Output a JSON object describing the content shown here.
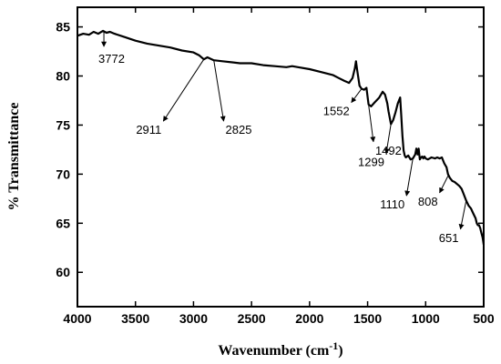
{
  "chart_data": {
    "type": "line",
    "title": "",
    "xlabel_main": "Wavenumber (cm",
    "xlabel_sup": "-1",
    "xlabel_close": ")",
    "ylabel": "% Transmittance",
    "xlim": [
      4000,
      500
    ],
    "ylim": [
      56.5,
      87
    ],
    "x_ticks": [
      4000,
      3500,
      3000,
      2500,
      2000,
      1500,
      1000,
      500
    ],
    "y_ticks": [
      60,
      65,
      70,
      75,
      80,
      85
    ],
    "grid": false,
    "line_color": "#000000",
    "series": [
      {
        "x": [
          4000,
          3950,
          3900,
          3860,
          3820,
          3780,
          3750,
          3720,
          3680,
          3600,
          3500,
          3400,
          3300,
          3200,
          3100,
          3000,
          2950,
          2911,
          2880,
          2825,
          2750,
          2600,
          2500,
          2400,
          2300,
          2200,
          2150,
          2100,
          2000,
          1900,
          1800,
          1750,
          1700,
          1660,
          1630,
          1610,
          1600,
          1590,
          1570,
          1552,
          1530,
          1510,
          1492,
          1470,
          1440,
          1400,
          1370,
          1350,
          1330,
          1320,
          1299,
          1280,
          1260,
          1240,
          1220,
          1210,
          1200,
          1190,
          1180,
          1170,
          1150,
          1130,
          1110,
          1090,
          1080,
          1070,
          1060,
          1050,
          1040,
          1030,
          1020,
          1010,
          1000,
          980,
          950,
          920,
          900,
          880,
          860,
          840,
          820,
          808,
          790,
          770,
          750,
          730,
          710,
          690,
          670,
          651,
          630,
          610,
          590,
          570,
          560,
          550,
          540,
          530,
          520,
          510,
          505,
          500
        ],
        "y": [
          84.1,
          84.3,
          84.2,
          84.5,
          84.3,
          84.6,
          84.4,
          84.5,
          84.3,
          84.0,
          83.6,
          83.3,
          83.1,
          82.9,
          82.6,
          82.4,
          82.1,
          81.7,
          81.9,
          81.6,
          81.5,
          81.3,
          81.3,
          81.1,
          81.0,
          80.9,
          81.0,
          80.9,
          80.7,
          80.4,
          80.1,
          79.8,
          79.5,
          79.3,
          79.8,
          80.8,
          81.5,
          80.6,
          79.0,
          78.7,
          78.6,
          78.8,
          77.1,
          76.9,
          77.3,
          77.8,
          78.4,
          78.1,
          77.2,
          76.4,
          75.1,
          75.5,
          76.3,
          77.2,
          77.8,
          76.0,
          73.9,
          72.4,
          71.9,
          71.7,
          71.9,
          71.5,
          71.6,
          72.0,
          72.6,
          72.0,
          72.6,
          71.5,
          71.7,
          71.8,
          71.6,
          71.8,
          71.6,
          71.5,
          71.7,
          71.6,
          71.7,
          71.6,
          71.7,
          71.1,
          70.7,
          70.0,
          69.6,
          69.3,
          69.2,
          69.0,
          68.8,
          68.5,
          67.9,
          67.3,
          66.8,
          66.5,
          66.0,
          65.5,
          65.0,
          64.8,
          64.8,
          64.5,
          64.0,
          63.6,
          63.2,
          62.8
        ]
      }
    ],
    "annotations": [
      {
        "text": "3772",
        "x": 3772,
        "y": 84.5,
        "tip_x": 3772,
        "tip_y": 83.0
      },
      {
        "text": "2911",
        "x": 2911,
        "y": 81.7,
        "tip_x": 3260,
        "tip_y": 75.4
      },
      {
        "text": "2825",
        "x": 2825,
        "y": 81.6,
        "tip_x": 2740,
        "tip_y": 75.4
      },
      {
        "text": "1552",
        "x": 1552,
        "y": 78.7,
        "tip_x": 1640,
        "tip_y": 77.3
      },
      {
        "text": "1492",
        "x": 1492,
        "y": 77.1,
        "tip_x": 1450,
        "tip_y": 73.3
      },
      {
        "text": "1299",
        "x": 1299,
        "y": 75.1,
        "tip_x": 1340,
        "tip_y": 72.1
      },
      {
        "text": "1110",
        "x": 1110,
        "y": 71.6,
        "tip_x": 1165,
        "tip_y": 67.8
      },
      {
        "text": "808",
        "x": 808,
        "y": 69.8,
        "tip_x": 880,
        "tip_y": 68.1
      },
      {
        "text": "651",
        "x": 651,
        "y": 67.3,
        "tip_x": 700,
        "tip_y": 64.4
      }
    ]
  }
}
